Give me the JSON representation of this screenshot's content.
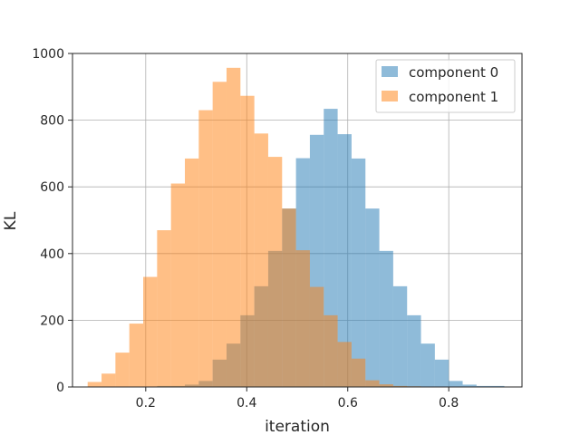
{
  "chart_data": {
    "type": "bar",
    "xlabel": "iteration",
    "ylabel": "KL",
    "xlim": [
      0.055,
      0.945
    ],
    "ylim": [
      0,
      1000
    ],
    "xticks": [
      0.2,
      0.4,
      0.6,
      0.8
    ],
    "xtick_labels": [
      "0.2",
      "0.4",
      "0.6",
      "0.8"
    ],
    "yticks": [
      0,
      200,
      400,
      600,
      800,
      1000
    ],
    "ytick_labels": [
      "0",
      "200",
      "400",
      "600",
      "800",
      "1000"
    ],
    "grid": true,
    "legend_position": "top-right",
    "bin_edges": [
      0.085,
      0.1125,
      0.14,
      0.1675,
      0.195,
      0.2225,
      0.25,
      0.2775,
      0.305,
      0.3325,
      0.36,
      0.3875,
      0.415,
      0.4425,
      0.47,
      0.4975,
      0.525,
      0.5525,
      0.58,
      0.6075,
      0.635,
      0.6625,
      0.69,
      0.7175,
      0.745,
      0.7725,
      0.8,
      0.8275,
      0.855,
      0.8825,
      0.91
    ],
    "series": [
      {
        "name": "component 0",
        "color": "#1f77b4",
        "alpha": 0.5,
        "values": [
          3,
          3,
          7,
          18,
          82,
          130,
          215,
          302,
          408,
          535,
          686,
          756,
          834,
          758,
          685,
          535,
          408,
          302,
          215,
          130,
          82,
          18,
          7,
          3,
          3
        ],
        "offset_bins": 5
      },
      {
        "name": "component 1",
        "color": "#ff7f0e",
        "alpha": 0.5,
        "values": [
          15,
          40,
          103,
          190,
          330,
          470,
          610,
          685,
          830,
          915,
          957,
          873,
          760,
          690,
          535,
          410,
          300,
          215,
          135,
          85,
          20,
          8,
          3,
          2,
          0
        ],
        "offset_bins": 0
      }
    ]
  }
}
